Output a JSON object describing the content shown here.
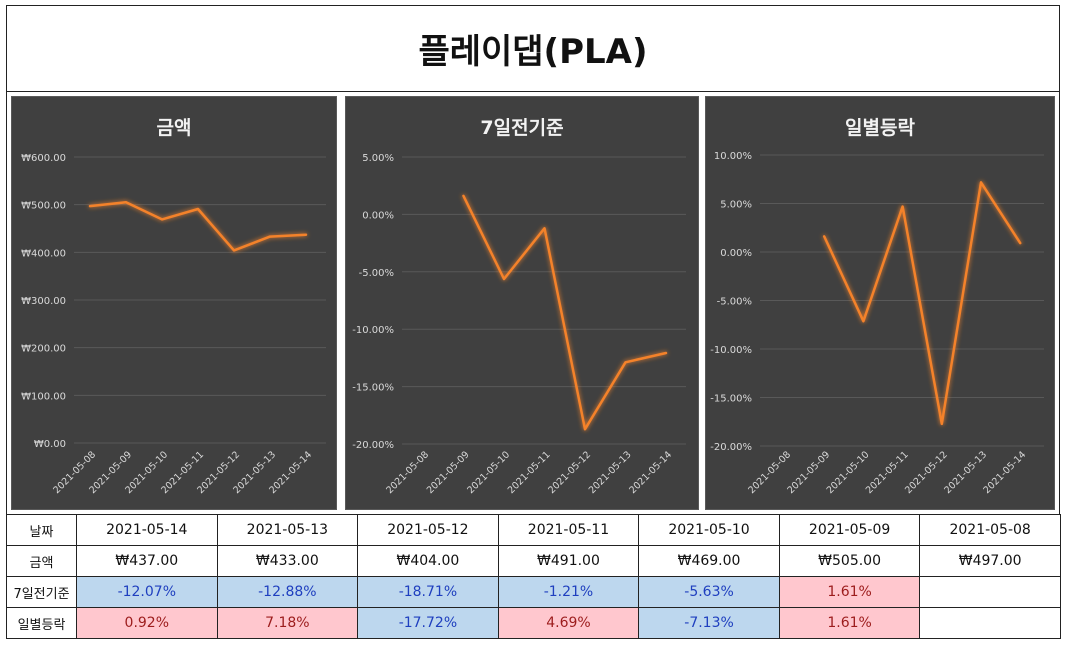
{
  "title": "플레이댑(PLA)",
  "colors": {
    "line": "#f4822a",
    "panel_bg": "#404040",
    "grid": "#595959",
    "text": "#d9d9d9",
    "negative_bg": "#bdd7ee",
    "positive_bg": "#ffc7ce"
  },
  "chart_data": [
    {
      "type": "line",
      "title": "금액",
      "x": [
        "2021-05-08",
        "2021-05-09",
        "2021-05-10",
        "2021-05-11",
        "2021-05-12",
        "2021-05-13",
        "2021-05-14"
      ],
      "values": [
        497,
        505,
        469,
        491,
        404,
        433,
        437
      ],
      "y_ticks": [
        "₩0.00",
        "₩100.00",
        "₩200.00",
        "₩300.00",
        "₩400.00",
        "₩500.00",
        "₩600.00"
      ],
      "ylim": [
        0,
        600
      ],
      "grid": true
    },
    {
      "type": "line",
      "title": "7일전기준",
      "x": [
        "2021-05-08",
        "2021-05-09",
        "2021-05-10",
        "2021-05-11",
        "2021-05-12",
        "2021-05-13",
        "2021-05-14"
      ],
      "values": [
        null,
        1.61,
        -5.63,
        -1.21,
        -18.71,
        -12.88,
        -12.07
      ],
      "y_ticks": [
        "-20.00%",
        "-15.00%",
        "-10.00%",
        "-5.00%",
        "0.00%",
        "5.00%"
      ],
      "ylim": [
        -20,
        5
      ],
      "grid": true
    },
    {
      "type": "line",
      "title": "일별등락",
      "x": [
        "2021-05-08",
        "2021-05-09",
        "2021-05-10",
        "2021-05-11",
        "2021-05-12",
        "2021-05-13",
        "2021-05-14"
      ],
      "values": [
        null,
        1.61,
        -7.13,
        4.69,
        -17.72,
        7.18,
        0.92
      ],
      "y_ticks": [
        "-20.00%",
        "-15.00%",
        "-10.00%",
        "-5.00%",
        "0.00%",
        "5.00%",
        "10.00%"
      ],
      "ylim": [
        -20,
        10
      ],
      "grid": true
    }
  ],
  "table": {
    "row_labels": [
      "날짜",
      "금액",
      "7일전기준",
      "일별등락"
    ],
    "dates": [
      "2021-05-14",
      "2021-05-13",
      "2021-05-12",
      "2021-05-11",
      "2021-05-10",
      "2021-05-09",
      "2021-05-08"
    ],
    "prices": [
      "₩437.00",
      "₩433.00",
      "₩404.00",
      "₩491.00",
      "₩469.00",
      "₩505.00",
      "₩497.00"
    ],
    "seven_day": [
      "-12.07%",
      "-12.88%",
      "-18.71%",
      "-1.21%",
      "-5.63%",
      "1.61%",
      ""
    ],
    "daily": [
      "0.92%",
      "7.18%",
      "-17.72%",
      "4.69%",
      "-7.13%",
      "1.61%",
      ""
    ]
  }
}
